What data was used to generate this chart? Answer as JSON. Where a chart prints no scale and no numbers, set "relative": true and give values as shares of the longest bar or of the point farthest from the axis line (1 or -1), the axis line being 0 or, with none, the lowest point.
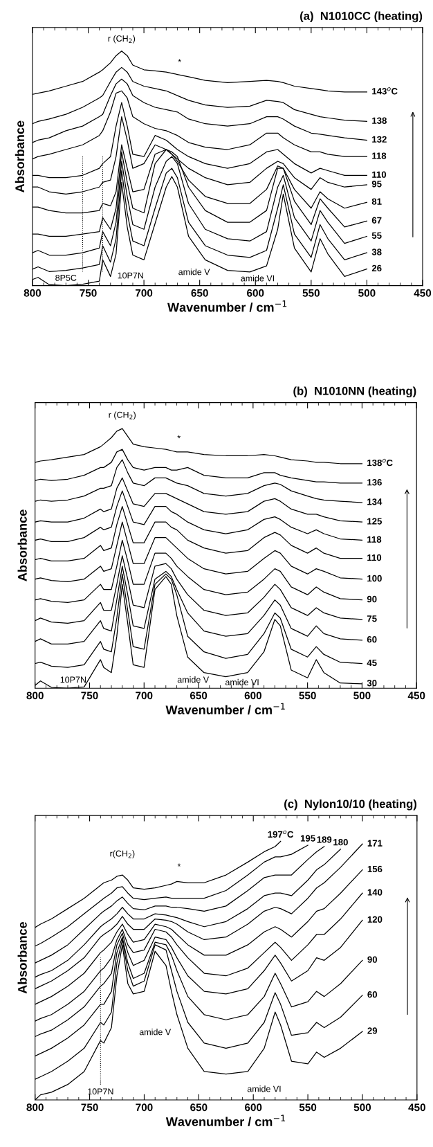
{
  "chart_data": [
    {
      "type": "line",
      "title": "(a)  N1010CC (heating)",
      "xlabel": "Wavenumber / cm$^{−1}$",
      "ylabel": "Absorbance",
      "relative": true,
      "tick_labels": "x",
      "xlim": [
        800,
        450
      ],
      "xticks": [
        800,
        750,
        700,
        650,
        600,
        550,
        500,
        450
      ],
      "x": [
        800,
        795,
        785,
        770,
        755,
        740,
        737,
        730,
        725,
        720,
        715,
        710,
        700,
        690,
        680,
        675,
        670,
        660,
        645,
        625,
        605,
        590,
        580,
        575,
        565,
        550,
        542,
        535,
        520,
        500
      ],
      "series": [
        {
          "name": "143$^{o}$C",
          "color": "#000000",
          "values": [
            0.815,
            0.82,
            0.83,
            0.85,
            0.87,
            0.91,
            0.92,
            0.95,
            0.98,
            1.0,
            0.98,
            0.94,
            0.92,
            0.915,
            0.91,
            0.905,
            0.9,
            0.89,
            0.875,
            0.865,
            0.87,
            0.875,
            0.87,
            0.865,
            0.85,
            0.84,
            0.835,
            0.83,
            0.825,
            0.825
          ]
        },
        {
          "name": "138",
          "color": "#000000",
          "values": [
            0.69,
            0.7,
            0.71,
            0.73,
            0.76,
            0.8,
            0.81,
            0.87,
            0.91,
            0.93,
            0.91,
            0.87,
            0.85,
            0.84,
            0.83,
            0.82,
            0.81,
            0.79,
            0.77,
            0.76,
            0.765,
            0.79,
            0.785,
            0.78,
            0.75,
            0.73,
            0.72,
            0.715,
            0.705,
            0.7
          ]
        },
        {
          "name": "132",
          "color": "#000000",
          "values": [
            0.61,
            0.62,
            0.63,
            0.66,
            0.68,
            0.72,
            0.73,
            0.81,
            0.86,
            0.88,
            0.86,
            0.81,
            0.78,
            0.76,
            0.75,
            0.745,
            0.74,
            0.71,
            0.69,
            0.68,
            0.69,
            0.72,
            0.72,
            0.71,
            0.68,
            0.65,
            0.645,
            0.64,
            0.63,
            0.62
          ]
        },
        {
          "name": "118",
          "color": "#000000",
          "values": [
            0.54,
            0.55,
            0.56,
            0.58,
            0.6,
            0.64,
            0.66,
            0.74,
            0.82,
            0.83,
            0.8,
            0.72,
            0.69,
            0.67,
            0.66,
            0.65,
            0.64,
            0.61,
            0.59,
            0.58,
            0.6,
            0.65,
            0.65,
            0.63,
            0.6,
            0.57,
            0.57,
            0.56,
            0.55,
            0.55
          ]
        },
        {
          "name": "110",
          "color": "#000000",
          "values": [
            0.47,
            0.47,
            0.46,
            0.46,
            0.47,
            0.5,
            0.52,
            0.55,
            0.68,
            0.78,
            0.68,
            0.56,
            0.55,
            0.64,
            0.62,
            0.6,
            0.58,
            0.55,
            0.52,
            0.5,
            0.52,
            0.57,
            0.58,
            0.56,
            0.52,
            0.48,
            0.5,
            0.49,
            0.47,
            0.47
          ]
        },
        {
          "name": "95",
          "color": "#000000",
          "values": [
            0.42,
            0.42,
            0.4,
            0.39,
            0.4,
            0.42,
            0.44,
            0.45,
            0.55,
            0.72,
            0.62,
            0.5,
            0.52,
            0.6,
            0.58,
            0.56,
            0.54,
            0.5,
            0.46,
            0.43,
            0.44,
            0.5,
            0.53,
            0.52,
            0.46,
            0.41,
            0.46,
            0.44,
            0.42,
            0.43
          ]
        },
        {
          "name": "81",
          "color": "#000000",
          "values": [
            0.335,
            0.335,
            0.32,
            0.31,
            0.31,
            0.32,
            0.35,
            0.34,
            0.4,
            0.6,
            0.5,
            0.4,
            0.41,
            0.56,
            0.58,
            0.56,
            0.53,
            0.45,
            0.38,
            0.35,
            0.35,
            0.41,
            0.51,
            0.5,
            0.41,
            0.33,
            0.4,
            0.37,
            0.33,
            0.355
          ]
        },
        {
          "name": "67",
          "color": "#000000",
          "values": [
            0.22,
            0.22,
            0.21,
            0.21,
            0.22,
            0.23,
            0.29,
            0.24,
            0.33,
            0.57,
            0.44,
            0.33,
            0.31,
            0.52,
            0.58,
            0.57,
            0.55,
            0.42,
            0.32,
            0.27,
            0.27,
            0.32,
            0.5,
            0.5,
            0.36,
            0.26,
            0.37,
            0.33,
            0.25,
            0.275
          ]
        },
        {
          "name": "55",
          "color": "#000000",
          "values": [
            0.14,
            0.15,
            0.13,
            0.13,
            0.14,
            0.16,
            0.23,
            0.17,
            0.27,
            0.53,
            0.38,
            0.26,
            0.24,
            0.42,
            0.53,
            0.55,
            0.52,
            0.35,
            0.24,
            0.2,
            0.19,
            0.23,
            0.42,
            0.47,
            0.29,
            0.19,
            0.32,
            0.27,
            0.18,
            0.21
          ]
        },
        {
          "name": "38",
          "color": "#000000",
          "values": [
            0.07,
            0.08,
            0.06,
            0.065,
            0.075,
            0.09,
            0.17,
            0.1,
            0.2,
            0.49,
            0.31,
            0.19,
            0.17,
            0.33,
            0.48,
            0.5,
            0.46,
            0.27,
            0.17,
            0.13,
            0.12,
            0.15,
            0.33,
            0.43,
            0.22,
            0.12,
            0.26,
            0.2,
            0.11,
            0.14
          ]
        },
        {
          "name": "26",
          "color": "#000000",
          "values": [
            0.026,
            0.035,
            0.004,
            0,
            0.006,
            0.019,
            0.11,
            0.039,
            0.135,
            0.44,
            0.25,
            0.13,
            0.11,
            0.265,
            0.42,
            0.465,
            0.42,
            0.21,
            0.11,
            0.065,
            0.058,
            0.084,
            0.24,
            0.39,
            0.16,
            0.058,
            0.2,
            0.135,
            0.039,
            0.071
          ]
        }
      ],
      "annotations": [
        "r (CH$_{2}$)",
        "*",
        "amide V",
        "amide VI"
      ],
      "ref_lines": [
        {
          "axis": "x",
          "value": 755,
          "label": "8P5C",
          "line_style": "dotted"
        },
        {
          "axis": "x",
          "value": 737,
          "label": "10P7N",
          "line_style": "dotted"
        }
      ]
    },
    {
      "type": "line",
      "title": "(b)  N1010NN (heating)",
      "xlabel": "Wavenumber / cm$^{−1}$",
      "ylabel": "Absorbance",
      "relative": true,
      "tick_labels": "x",
      "xlim": [
        800,
        450
      ],
      "xticks": [
        800,
        750,
        700,
        650,
        600,
        550,
        500,
        450
      ],
      "x": [
        800,
        795,
        785,
        770,
        755,
        740,
        737,
        730,
        725,
        720,
        715,
        710,
        700,
        690,
        680,
        675,
        670,
        660,
        645,
        625,
        605,
        590,
        580,
        575,
        565,
        550,
        542,
        535,
        520,
        500
      ],
      "series": [
        {
          "name": "138$^{o}$C",
          "color": "#000000",
          "values": [
            0.87,
            0.875,
            0.88,
            0.89,
            0.9,
            0.93,
            0.94,
            0.965,
            0.99,
            1.0,
            0.97,
            0.94,
            0.93,
            0.925,
            0.92,
            0.915,
            0.91,
            0.91,
            0.9,
            0.895,
            0.895,
            0.9,
            0.895,
            0.89,
            0.88,
            0.875,
            0.87,
            0.87,
            0.865,
            0.865
          ]
        },
        {
          "name": "136",
          "color": "#000000",
          "values": [
            0.8,
            0.805,
            0.8,
            0.805,
            0.82,
            0.85,
            0.85,
            0.87,
            0.91,
            0.92,
            0.88,
            0.85,
            0.84,
            0.85,
            0.85,
            0.84,
            0.84,
            0.85,
            0.82,
            0.81,
            0.81,
            0.83,
            0.83,
            0.82,
            0.81,
            0.8,
            0.795,
            0.795,
            0.79,
            0.79
          ]
        },
        {
          "name": "134",
          "color": "#000000",
          "values": [
            0.72,
            0.725,
            0.72,
            0.725,
            0.74,
            0.77,
            0.77,
            0.78,
            0.85,
            0.88,
            0.83,
            0.79,
            0.78,
            0.81,
            0.81,
            0.8,
            0.79,
            0.78,
            0.75,
            0.74,
            0.75,
            0.78,
            0.79,
            0.785,
            0.76,
            0.74,
            0.73,
            0.725,
            0.72,
            0.715
          ]
        },
        {
          "name": "125",
          "color": "#000000",
          "values": [
            0.64,
            0.645,
            0.64,
            0.64,
            0.655,
            0.69,
            0.68,
            0.69,
            0.77,
            0.81,
            0.76,
            0.71,
            0.7,
            0.75,
            0.75,
            0.74,
            0.73,
            0.71,
            0.68,
            0.67,
            0.68,
            0.72,
            0.73,
            0.72,
            0.69,
            0.67,
            0.67,
            0.66,
            0.645,
            0.64
          ]
        },
        {
          "name": "118",
          "color": "#000000",
          "values": [
            0.57,
            0.575,
            0.565,
            0.565,
            0.58,
            0.62,
            0.61,
            0.62,
            0.7,
            0.76,
            0.7,
            0.64,
            0.63,
            0.7,
            0.7,
            0.68,
            0.67,
            0.64,
            0.61,
            0.595,
            0.61,
            0.65,
            0.66,
            0.65,
            0.62,
            0.595,
            0.61,
            0.595,
            0.575,
            0.57
          ]
        },
        {
          "name": "110",
          "color": "#000000",
          "values": [
            0.495,
            0.5,
            0.49,
            0.49,
            0.5,
            0.55,
            0.53,
            0.54,
            0.63,
            0.7,
            0.63,
            0.56,
            0.56,
            0.64,
            0.64,
            0.62,
            0.61,
            0.57,
            0.54,
            0.52,
            0.53,
            0.58,
            0.6,
            0.59,
            0.55,
            0.52,
            0.54,
            0.52,
            0.5,
            0.5
          ]
        },
        {
          "name": "100",
          "color": "#000000",
          "values": [
            0.42,
            0.425,
            0.415,
            0.41,
            0.42,
            0.47,
            0.45,
            0.46,
            0.55,
            0.64,
            0.56,
            0.48,
            0.48,
            0.58,
            0.58,
            0.56,
            0.54,
            0.5,
            0.46,
            0.44,
            0.45,
            0.5,
            0.53,
            0.52,
            0.47,
            0.44,
            0.46,
            0.45,
            0.425,
            0.42
          ]
        },
        {
          "name": "90",
          "color": "#000000",
          "values": [
            0.34,
            0.345,
            0.335,
            0.33,
            0.34,
            0.4,
            0.38,
            0.38,
            0.47,
            0.57,
            0.49,
            0.4,
            0.4,
            0.52,
            0.52,
            0.5,
            0.47,
            0.43,
            0.38,
            0.36,
            0.37,
            0.42,
            0.46,
            0.45,
            0.39,
            0.36,
            0.39,
            0.37,
            0.345,
            0.34
          ]
        },
        {
          "name": "75",
          "color": "#000000",
          "values": [
            0.26,
            0.27,
            0.255,
            0.25,
            0.26,
            0.33,
            0.3,
            0.3,
            0.4,
            0.51,
            0.42,
            0.32,
            0.31,
            0.47,
            0.48,
            0.46,
            0.42,
            0.36,
            0.3,
            0.28,
            0.29,
            0.35,
            0.4,
            0.38,
            0.31,
            0.28,
            0.31,
            0.29,
            0.27,
            0.265
          ]
        },
        {
          "name": "60",
          "color": "#000000",
          "values": [
            0.18,
            0.19,
            0.17,
            0.17,
            0.18,
            0.26,
            0.23,
            0.22,
            0.34,
            0.47,
            0.36,
            0.24,
            0.23,
            0.42,
            0.45,
            0.43,
            0.38,
            0.29,
            0.22,
            0.2,
            0.21,
            0.28,
            0.34,
            0.32,
            0.23,
            0.2,
            0.24,
            0.21,
            0.19,
            0.185
          ]
        },
        {
          "name": "45",
          "color": "#000000",
          "values": [
            0.095,
            0.1,
            0.085,
            0.08,
            0.09,
            0.18,
            0.15,
            0.14,
            0.27,
            0.44,
            0.3,
            0.16,
            0.15,
            0.4,
            0.44,
            0.42,
            0.36,
            0.2,
            0.14,
            0.115,
            0.13,
            0.21,
            0.29,
            0.27,
            0.15,
            0.12,
            0.16,
            0.13,
            0.1,
            0.095
          ]
        },
        {
          "name": "30",
          "color": "#000000",
          "values": [
            0.011,
            0.028,
            0.003,
            0,
            0.005,
            0.11,
            0.08,
            0.06,
            0.2,
            0.4,
            0.25,
            0.09,
            0.08,
            0.38,
            0.43,
            0.4,
            0.28,
            0.12,
            0.06,
            0.044,
            0.06,
            0.14,
            0.265,
            0.24,
            0.07,
            0.04,
            0.11,
            0.06,
            0.02,
            0.017
          ]
        }
      ],
      "annotations": [
        "r (CH$_{2}$)",
        "*",
        "amide V",
        "10P7N",
        "amide VI"
      ]
    },
    {
      "type": "line",
      "title": "(c)  Nylon10/10 (heating)",
      "xlabel": "Wavenumber / cm$^{−1}$",
      "ylabel": "Absorbance",
      "relative": true,
      "tick_labels": "x",
      "xlim": [
        800,
        450
      ],
      "xticks": [
        800,
        750,
        700,
        650,
        600,
        550,
        500,
        450
      ],
      "x": [
        800,
        795,
        785,
        770,
        755,
        740,
        737,
        730,
        725,
        720,
        715,
        710,
        700,
        690,
        680,
        675,
        670,
        660,
        645,
        625,
        605,
        590,
        580,
        575,
        565,
        550,
        542,
        535,
        520,
        500
      ],
      "series": [
        {
          "name": "197$^{o}$C",
          "color": "#000000",
          "values": [
            0.667,
            0.68,
            0.7,
            0.74,
            0.78,
            0.83,
            0.84,
            0.85,
            0.865,
            0.87,
            0.85,
            0.82,
            0.815,
            0.82,
            0.83,
            0.835,
            0.845,
            0.84,
            0.84,
            0.87,
            0.92,
            0.96,
            0.98,
            1.0,
            null,
            null,
            null,
            null,
            null,
            null
          ]
        },
        {
          "name": "195",
          "color": "#000000",
          "values": [
            0.595,
            0.605,
            0.63,
            0.67,
            0.72,
            0.77,
            0.78,
            0.8,
            0.82,
            0.825,
            0.8,
            0.78,
            0.775,
            0.78,
            0.785,
            0.78,
            0.78,
            0.78,
            0.78,
            0.81,
            0.87,
            0.92,
            0.94,
            0.94,
            0.95,
            0.985,
            null,
            null,
            null,
            null
          ]
        },
        {
          "name": "189",
          "color": "#000000",
          "values": [
            0.53,
            0.54,
            0.56,
            0.6,
            0.66,
            0.72,
            0.73,
            0.75,
            0.77,
            0.785,
            0.76,
            0.74,
            0.735,
            0.75,
            0.75,
            0.745,
            0.745,
            0.74,
            0.73,
            0.75,
            0.81,
            0.86,
            0.87,
            0.87,
            0.87,
            0.93,
            0.96,
            0.98,
            null,
            null
          ]
        },
        {
          "name": "180",
          "color": "#000000",
          "values": [
            0.475,
            0.485,
            0.5,
            0.54,
            0.6,
            0.67,
            0.68,
            0.7,
            0.72,
            0.745,
            0.72,
            0.7,
            0.7,
            0.72,
            0.715,
            0.71,
            0.705,
            0.69,
            0.67,
            0.69,
            0.74,
            0.79,
            0.8,
            0.8,
            0.79,
            0.85,
            0.89,
            0.91,
            0.97,
            null
          ]
        },
        {
          "name": "171",
          "color": "#000000",
          "values": [
            0.43,
            0.44,
            0.46,
            0.5,
            0.55,
            0.63,
            0.64,
            0.66,
            0.68,
            0.71,
            0.68,
            0.66,
            0.66,
            0.7,
            0.695,
            0.69,
            0.68,
            0.65,
            0.62,
            0.63,
            0.68,
            0.73,
            0.745,
            0.74,
            0.72,
            0.78,
            0.82,
            0.84,
            0.9,
            0.99
          ]
        },
        {
          "name": "156",
          "color": "#000000",
          "values": [
            0.37,
            0.38,
            0.4,
            0.44,
            0.49,
            0.57,
            0.58,
            0.61,
            0.65,
            0.68,
            0.64,
            0.61,
            0.62,
            0.68,
            0.67,
            0.66,
            0.64,
            0.6,
            0.56,
            0.56,
            0.6,
            0.65,
            0.67,
            0.66,
            0.63,
            0.69,
            0.73,
            0.74,
            0.8,
            0.89
          ]
        },
        {
          "name": "140",
          "color": "#000000",
          "values": [
            0.305,
            0.315,
            0.33,
            0.37,
            0.42,
            0.5,
            0.51,
            0.55,
            0.62,
            0.66,
            0.6,
            0.57,
            0.58,
            0.66,
            0.65,
            0.63,
            0.6,
            0.55,
            0.49,
            0.48,
            0.51,
            0.57,
            0.61,
            0.59,
            0.54,
            0.6,
            0.64,
            0.64,
            0.7,
            0.8
          ]
        },
        {
          "name": "120",
          "color": "#000000",
          "values": [
            0.245,
            0.255,
            0.27,
            0.31,
            0.36,
            0.44,
            0.45,
            0.49,
            0.6,
            0.645,
            0.57,
            0.52,
            0.54,
            0.63,
            0.62,
            0.59,
            0.55,
            0.48,
            0.42,
            0.41,
            0.43,
            0.5,
            0.56,
            0.53,
            0.46,
            0.5,
            0.55,
            0.54,
            0.59,
            0.695
          ]
        },
        {
          "name": "90",
          "color": "#000000",
          "values": [
            0.17,
            0.18,
            0.2,
            0.24,
            0.29,
            0.37,
            0.37,
            0.42,
            0.57,
            0.63,
            0.53,
            0.47,
            0.49,
            0.61,
            0.6,
            0.56,
            0.5,
            0.4,
            0.33,
            0.31,
            0.33,
            0.4,
            0.49,
            0.45,
            0.36,
            0.38,
            0.42,
            0.4,
            0.45,
            0.54
          ]
        },
        {
          "name": "60",
          "color": "#000000",
          "values": [
            0.08,
            0.09,
            0.11,
            0.15,
            0.2,
            0.3,
            0.29,
            0.34,
            0.53,
            0.62,
            0.5,
            0.44,
            0.46,
            0.6,
            0.58,
            0.5,
            0.42,
            0.3,
            0.22,
            0.2,
            0.22,
            0.3,
            0.415,
            0.37,
            0.25,
            0.26,
            0.3,
            0.28,
            0.32,
            0.405
          ]
        },
        {
          "name": "29",
          "color": "#000000",
          "values": [
            0,
            0.02,
            0.03,
            0.06,
            0.11,
            0.23,
            0.22,
            0.28,
            0.48,
            0.6,
            0.45,
            0.41,
            0.42,
            0.575,
            0.52,
            0.42,
            0.33,
            0.2,
            0.11,
            0.1,
            0.11,
            0.2,
            0.34,
            0.29,
            0.15,
            0.14,
            0.185,
            0.165,
            0.2,
            0.265
          ]
        }
      ],
      "annotations": [
        "r(CH$_{2}$)",
        "*",
        "amide V",
        "amide VI"
      ],
      "ref_lines": [
        {
          "axis": "x",
          "value": 740,
          "label": "10P7N",
          "line_style": "dotted"
        }
      ]
    }
  ]
}
